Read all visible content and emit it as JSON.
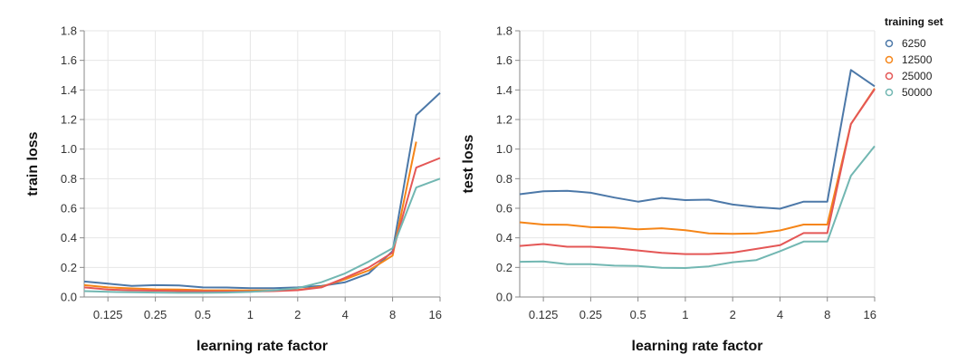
{
  "chart_data": [
    {
      "type": "line",
      "xlabel": "learning rate factor",
      "ylabel": "train loss",
      "xscale": "log2",
      "xlim": [
        0.0884,
        16
      ],
      "ylim": [
        0,
        1.8
      ],
      "x_ticks": [
        "0.125",
        "0.25",
        "0.5",
        "1",
        "2",
        "4",
        "8",
        "16"
      ],
      "y_ticks": [
        "0.0",
        "0.2",
        "0.4",
        "0.6",
        "0.8",
        "1.0",
        "1.2",
        "1.4",
        "1.6",
        "1.8"
      ],
      "grid": true,
      "x": [
        0.0884,
        0.125,
        0.177,
        0.25,
        0.354,
        0.5,
        0.707,
        1,
        1.41,
        2,
        2.83,
        4,
        5.66,
        8,
        11.3,
        16
      ],
      "series": [
        {
          "name": "6250",
          "color": "#4c78a8",
          "values": [
            0.105,
            0.09,
            0.075,
            0.08,
            0.078,
            0.065,
            0.064,
            0.06,
            0.06,
            0.065,
            0.075,
            0.1,
            0.16,
            0.31,
            1.23,
            1.38
          ]
        },
        {
          "name": "12500",
          "color": "#f58518",
          "values": [
            0.08,
            0.065,
            0.058,
            0.052,
            0.05,
            0.046,
            0.045,
            0.044,
            0.045,
            0.047,
            0.07,
            0.12,
            0.18,
            0.28,
            1.05,
            null
          ]
        },
        {
          "name": "25000",
          "color": "#e45756",
          "values": [
            0.065,
            0.05,
            0.045,
            0.043,
            0.04,
            0.038,
            0.037,
            0.037,
            0.04,
            0.046,
            0.065,
            0.13,
            0.2,
            0.3,
            0.875,
            0.94
          ]
        },
        {
          "name": "50000",
          "color": "#72b7b2",
          "values": [
            0.04,
            0.035,
            0.032,
            0.03,
            0.028,
            0.028,
            0.03,
            0.034,
            0.045,
            0.06,
            0.1,
            0.16,
            0.24,
            0.33,
            0.74,
            0.8
          ]
        }
      ]
    },
    {
      "type": "line",
      "xlabel": "learning rate factor",
      "ylabel": "test loss",
      "xscale": "log2",
      "xlim": [
        0.0884,
        16
      ],
      "ylim": [
        0,
        1.8
      ],
      "x_ticks": [
        "0.125",
        "0.25",
        "0.5",
        "1",
        "2",
        "4",
        "8",
        "16"
      ],
      "y_ticks": [
        "0.0",
        "0.2",
        "0.4",
        "0.6",
        "0.8",
        "1.0",
        "1.2",
        "1.4",
        "1.6",
        "1.8"
      ],
      "grid": true,
      "x": [
        0.0884,
        0.125,
        0.177,
        0.25,
        0.354,
        0.5,
        0.707,
        1,
        1.41,
        2,
        2.83,
        4,
        5.66,
        8,
        11.3,
        16
      ],
      "series": [
        {
          "name": "6250",
          "color": "#4c78a8",
          "values": [
            0.695,
            0.715,
            0.718,
            0.705,
            0.672,
            0.645,
            0.67,
            0.655,
            0.658,
            0.625,
            0.608,
            0.597,
            0.645,
            0.645,
            1.535,
            1.425
          ]
        },
        {
          "name": "12500",
          "color": "#f58518",
          "values": [
            0.505,
            0.49,
            0.488,
            0.472,
            0.47,
            0.458,
            0.465,
            0.452,
            0.43,
            0.427,
            0.43,
            0.45,
            0.49,
            0.49,
            1.17,
            1.41
          ]
        },
        {
          "name": "25000",
          "color": "#e45756",
          "values": [
            0.345,
            0.358,
            0.34,
            0.34,
            0.33,
            0.315,
            0.298,
            0.29,
            0.29,
            0.3,
            0.325,
            0.35,
            0.432,
            0.432,
            1.17,
            1.405
          ]
        },
        {
          "name": "50000",
          "color": "#72b7b2",
          "values": [
            0.238,
            0.24,
            0.222,
            0.222,
            0.212,
            0.21,
            0.198,
            0.196,
            0.207,
            0.235,
            0.25,
            0.31,
            0.375,
            0.375,
            0.82,
            1.02
          ]
        }
      ]
    }
  ],
  "legend": {
    "title": "training set",
    "items": [
      {
        "label": "6250",
        "color": "#4c78a8"
      },
      {
        "label": "12500",
        "color": "#f58518"
      },
      {
        "label": "25000",
        "color": "#e45756"
      },
      {
        "label": "50000",
        "color": "#72b7b2"
      }
    ]
  }
}
